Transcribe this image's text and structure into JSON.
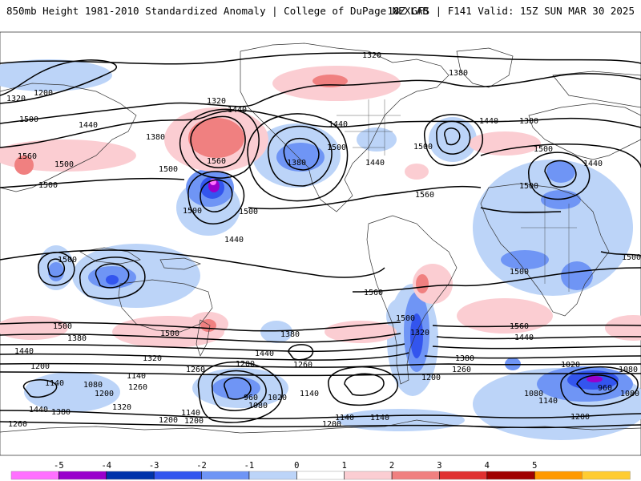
{
  "header": {
    "title_left": "850mb Height 1981-2010 Standardized Anomaly | College of DuPage NEXLAB",
    "title_right": "18Z GFS | F141 Valid: 15Z SUN MAR 30 2025"
  },
  "contour_labels": [
    "1320",
    "1380",
    "1320",
    "1200",
    "1440",
    "1320",
    "1500",
    "1440",
    "1380",
    "1440",
    "1500",
    "1440",
    "1380",
    "1560",
    "1500",
    "1500",
    "1560",
    "1380",
    "1500",
    "1440",
    "1500",
    "1560",
    "1500",
    "1500",
    "1440",
    "1500",
    "1500",
    "1500",
    "1560",
    "1500",
    "1500",
    "1320",
    "1500",
    "1440",
    "1380",
    "1500",
    "1560",
    "1440",
    "1380",
    "1500",
    "1440",
    "1200",
    "1320",
    "1260",
    "1380",
    "1440",
    "1200",
    "1260",
    "1140",
    "1140",
    "1080",
    "1200",
    "1260",
    "1020",
    "1080",
    "960",
    "960",
    "1080",
    "1020",
    "1080",
    "1140",
    "1080",
    "1140",
    "1200",
    "1320",
    "1440",
    "1380",
    "1200",
    "1260",
    "1140",
    "1200",
    "1140",
    "1140",
    "1200",
    "1260",
    "1200"
  ],
  "colorbar": {
    "ticks": [
      "-5",
      "-4",
      "-3",
      "-2",
      "-1",
      "0",
      "1",
      "2",
      "3",
      "4",
      "5"
    ],
    "colors": [
      "#ff70ff",
      "#9900cc",
      "#0033aa",
      "#3355ee",
      "#6f95f5",
      "#bcd4f8",
      "#ffffff",
      "#fbcdd2",
      "#f08080",
      "#e03030",
      "#a00000",
      "#ff9900",
      "#ffcc33"
    ]
  }
}
